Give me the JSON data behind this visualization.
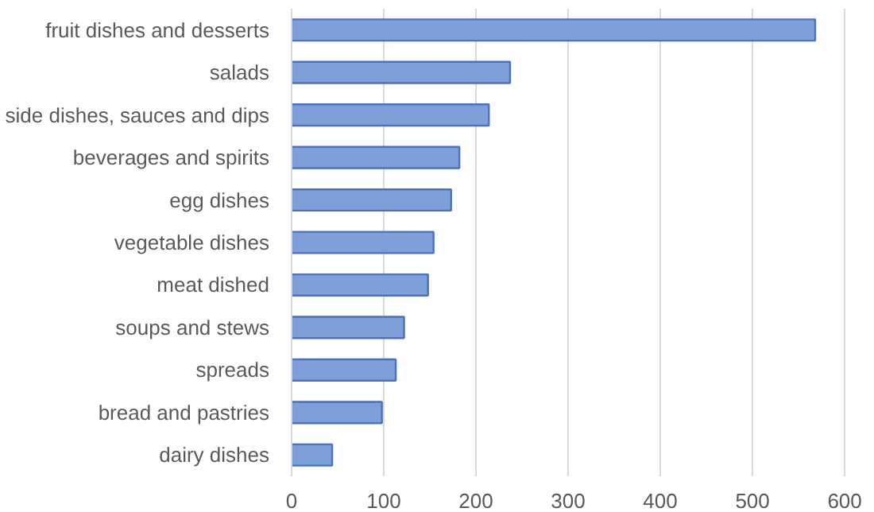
{
  "chart_data": {
    "type": "bar",
    "orientation": "horizontal",
    "categories": [
      "fruit dishes and desserts",
      "salads",
      "side dishes, sauces and dips",
      "beverages and spirits",
      "egg dishes",
      "vegetable dishes",
      "meat dished",
      "soups and stews",
      "spreads",
      "bread and pastries",
      "dairy dishes"
    ],
    "values": [
      568,
      237,
      214,
      182,
      173,
      154,
      148,
      122,
      113,
      98,
      44
    ],
    "color": "#7f9fd9",
    "xlim": [
      0,
      600
    ],
    "xticks": [
      0,
      100,
      200,
      300,
      400,
      500,
      600
    ],
    "grid": "x"
  }
}
